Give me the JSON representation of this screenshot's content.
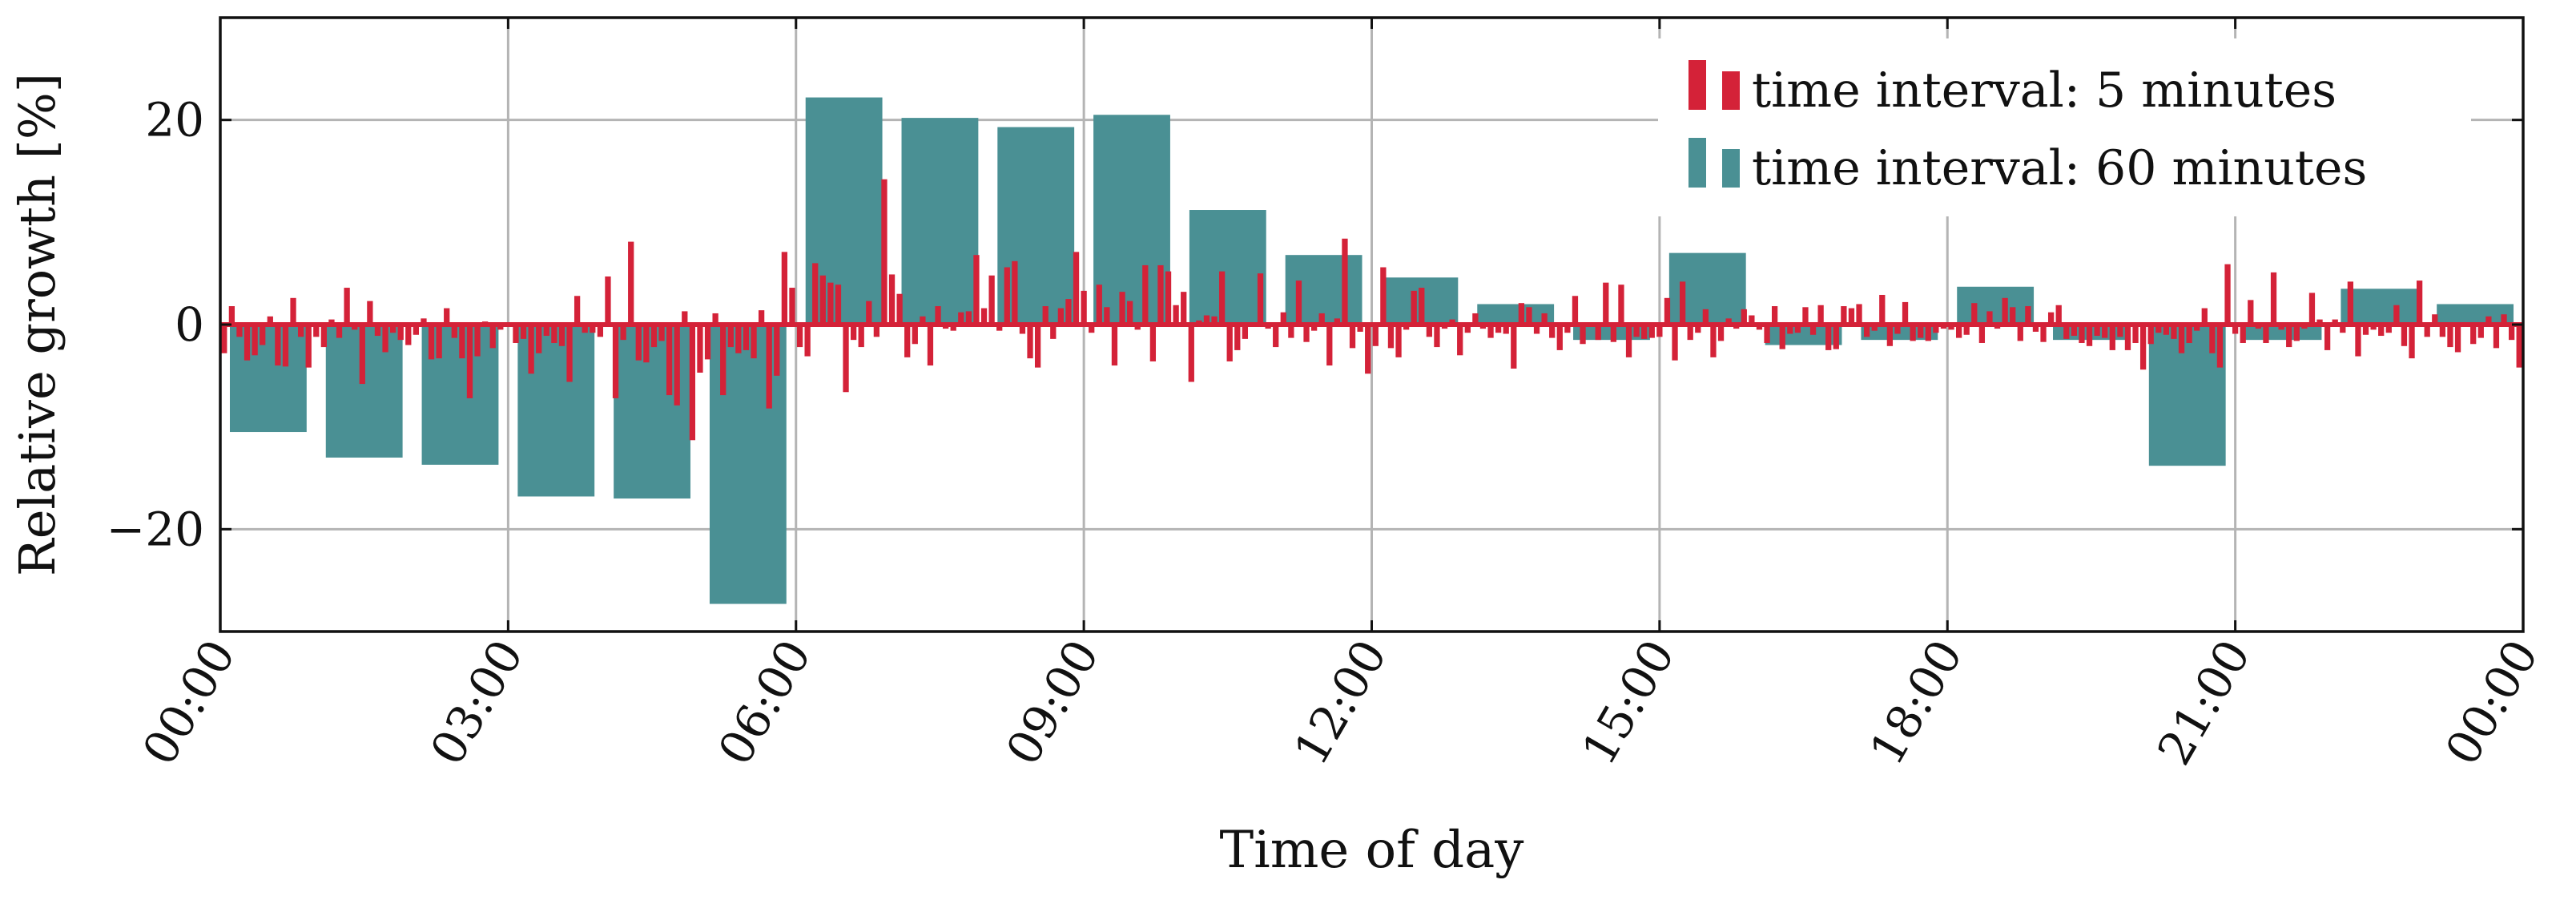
{
  "chart_data": {
    "type": "bar",
    "title": "",
    "xlabel": "Time of day",
    "ylabel": "Relative growth [%]",
    "xlim": [
      0,
      24
    ],
    "ylim": [
      -30,
      30
    ],
    "grid": true,
    "legend_position": "top-right",
    "x_ticks": [
      {
        "value": 0,
        "label": "00:00"
      },
      {
        "value": 3,
        "label": "03:00"
      },
      {
        "value": 6,
        "label": "06:00"
      },
      {
        "value": 9,
        "label": "09:00"
      },
      {
        "value": 12,
        "label": "12:00"
      },
      {
        "value": 15,
        "label": "15:00"
      },
      {
        "value": 18,
        "label": "18:00"
      },
      {
        "value": 21,
        "label": "21:00"
      },
      {
        "value": 24,
        "label": "00:00"
      }
    ],
    "y_ticks": [
      {
        "value": -20,
        "label": "−20"
      },
      {
        "value": 0,
        "label": "0"
      },
      {
        "value": 20,
        "label": "20"
      }
    ],
    "series": [
      {
        "name": "time interval: 60 minutes",
        "color": "#4a9094",
        "bin_hours": 1,
        "x": [
          0,
          1,
          2,
          3,
          4,
          5,
          6,
          7,
          8,
          9,
          10,
          11,
          12,
          13,
          14,
          15,
          16,
          17,
          18,
          19,
          20,
          21,
          22,
          23
        ],
        "values": [
          -10.5,
          -13,
          -13.7,
          -16.8,
          -17,
          -27.3,
          22.2,
          20.2,
          19.3,
          20.5,
          11.2,
          6.8,
          4.6,
          2,
          -1.5,
          7,
          -2,
          -1.5,
          3.7,
          -1.5,
          -13.8,
          -1.5,
          3.5,
          2
        ]
      },
      {
        "name": "time interval: 5 minutes",
        "color": "#d42238",
        "bin_hours": 0.08333,
        "values": [
          -2.8,
          1.8,
          -1.2,
          -3.5,
          -3,
          -2,
          0.8,
          -4,
          -4.1,
          2.6,
          -1.2,
          -4.2,
          -1.2,
          -2.2,
          0.5,
          -1.3,
          3.6,
          -0.5,
          -5.8,
          2.3,
          -1.1,
          -2.7,
          -0.8,
          -1.5,
          -2,
          -1,
          0.6,
          -3.4,
          -3.3,
          1.6,
          -1.3,
          -3.3,
          -7.2,
          -3.1,
          0.3,
          -2.3,
          -0.5,
          0.2,
          -1.8,
          -1.4,
          -4.8,
          -2.8,
          -1.1,
          -1.8,
          -2.1,
          -5.6,
          2.8,
          -0.8,
          -0.8,
          -1.2,
          4.7,
          -7.2,
          -1.5,
          8.1,
          -3.5,
          -3.7,
          -2.2,
          -1.6,
          -6.9,
          -7.9,
          1.3,
          -11.3,
          -4.7,
          -3.4,
          1.1,
          -6.9,
          -2.2,
          -2.8,
          -2.5,
          -3.3,
          1.4,
          -8.2,
          -5,
          7.1,
          3.6,
          -2.2,
          -3.1,
          6,
          4.8,
          4.1,
          3.9,
          -6.6,
          -1.5,
          -2.2,
          2.3,
          -1.2,
          14.2,
          4.9,
          3,
          -3.2,
          -1.9,
          0.8,
          -4,
          1.8,
          -0.4,
          -0.6,
          1.2,
          1.3,
          6.8,
          1.6,
          4.8,
          -0.6,
          5.6,
          6.2,
          -0.9,
          -3.3,
          -4.2,
          1.8,
          -1.4,
          1.6,
          2.5,
          7.1,
          3.3,
          -0.8,
          3.9,
          1.7,
          -4,
          3.2,
          2.3,
          -0.5,
          5.8,
          -3.6,
          5.8,
          5.2,
          1.9,
          3.2,
          -5.6,
          0.4,
          0.9,
          0.8,
          5.2,
          -3.6,
          -2.5,
          -1.4,
          -0.2,
          5,
          -0.4,
          -2.2,
          1.2,
          -1.3,
          4.3,
          -1.7,
          -0.6,
          1.1,
          -4,
          0.6,
          8.4,
          -2.3,
          -0.7,
          -4.8,
          -2.1,
          5.6,
          -2.3,
          -3.2,
          -0.5,
          3.3,
          3.6,
          -1.2,
          -2.2,
          -0.4,
          0.5,
          -3,
          -0.8,
          1.1,
          -0.4,
          -1.3,
          -0.8,
          -0.9,
          -4.3,
          2.1,
          1.7,
          -0.9,
          1.1,
          -1.3,
          -2.5,
          -0.8,
          2.8,
          -1.9,
          -0.2,
          -1.5,
          4.1,
          -1.7,
          3.9,
          -3.2,
          -1.2,
          -1.4,
          -1.3,
          -1.2,
          2.6,
          -3.5,
          4.2,
          -1.5,
          -0.8,
          1.5,
          -3.2,
          -1.6,
          0.6,
          -0.4,
          1.5,
          0.9,
          -0.5,
          -1.8,
          1.8,
          -2.4,
          -0.9,
          -0.8,
          1.7,
          -1,
          1.9,
          -2.5,
          -2.4,
          1.8,
          1.6,
          2,
          -1.2,
          -0.6,
          2.9,
          -2.1,
          -0.9,
          2.2,
          -1.6,
          -1.3,
          -1.6,
          -0.8,
          -0.4,
          -0.5,
          -1.3,
          -1,
          2.1,
          -1.8,
          1.3,
          -0.4,
          2.6,
          1.7,
          -1.6,
          1.8,
          -0.7,
          -1.7,
          1.2,
          1.9,
          -1.4,
          -1.1,
          -1.8,
          -2.1,
          -1.1,
          -1.3,
          -2.5,
          -1.2,
          -2.5,
          -1.8,
          -4.4,
          -1.9,
          -0.8,
          -1,
          -1.4,
          -2.8,
          -1.8,
          -0.6,
          1.6,
          -2.8,
          -4.2,
          5.9,
          -0.9,
          -1.8,
          2.4,
          -0.4,
          -1.8,
          5.1,
          -0.5,
          -2.2,
          -1.6,
          -0.4,
          3.1,
          0.5,
          -2.5,
          0.5,
          -0.8,
          4.2,
          -3.1,
          -1,
          -0.5,
          -1.1,
          -0.8,
          1.9,
          -2.1,
          -3.3,
          4.3,
          -1.2,
          1,
          -1.2,
          -2.2,
          -2.7,
          0.2,
          -1.9,
          -1.3,
          0.8,
          -2.3,
          1,
          -1.5,
          -4.2
        ]
      }
    ]
  }
}
